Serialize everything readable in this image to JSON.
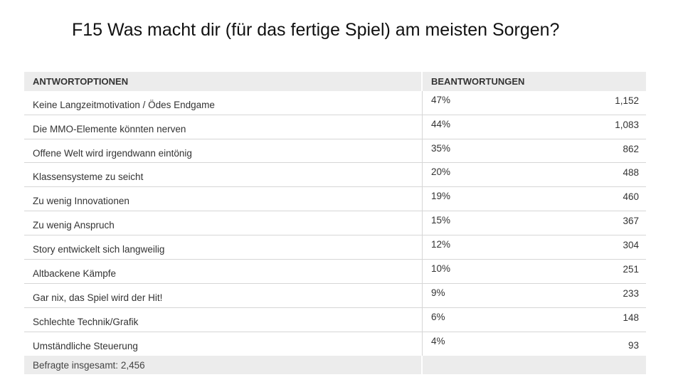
{
  "title": "F15 Was macht dir (für das fertige Spiel) am meisten Sorgen?",
  "table": {
    "headers": {
      "options": "ANTWORTOPTIONEN",
      "responses": "BEANTWORTUNGEN"
    },
    "rows": [
      {
        "label": "Keine Langzeitmotivation / Ödes Endgame",
        "percent": "47%",
        "count": "1,152"
      },
      {
        "label": "Die MMO-Elemente könnten nerven",
        "percent": "44%",
        "count": "1,083"
      },
      {
        "label": "Offene Welt wird irgendwann eintönig",
        "percent": "35%",
        "count": "862"
      },
      {
        "label": "Klassensysteme zu seicht",
        "percent": "20%",
        "count": "488"
      },
      {
        "label": "Zu wenig Innovationen",
        "percent": "19%",
        "count": "460"
      },
      {
        "label": "Zu wenig Anspruch",
        "percent": "15%",
        "count": "367"
      },
      {
        "label": "Story entwickelt sich langweilig",
        "percent": "12%",
        "count": "304"
      },
      {
        "label": "Altbackene Kämpfe",
        "percent": "10%",
        "count": "251"
      },
      {
        "label": "Gar nix, das Spiel wird der Hit!",
        "percent": "9%",
        "count": "233"
      },
      {
        "label": "Schlechte Technik/Grafik",
        "percent": "6%",
        "count": "148"
      },
      {
        "label": "Umständliche Steuerung",
        "percent": "4%",
        "count": "93"
      }
    ],
    "footer": "Befragte insgesamt: 2,456"
  }
}
